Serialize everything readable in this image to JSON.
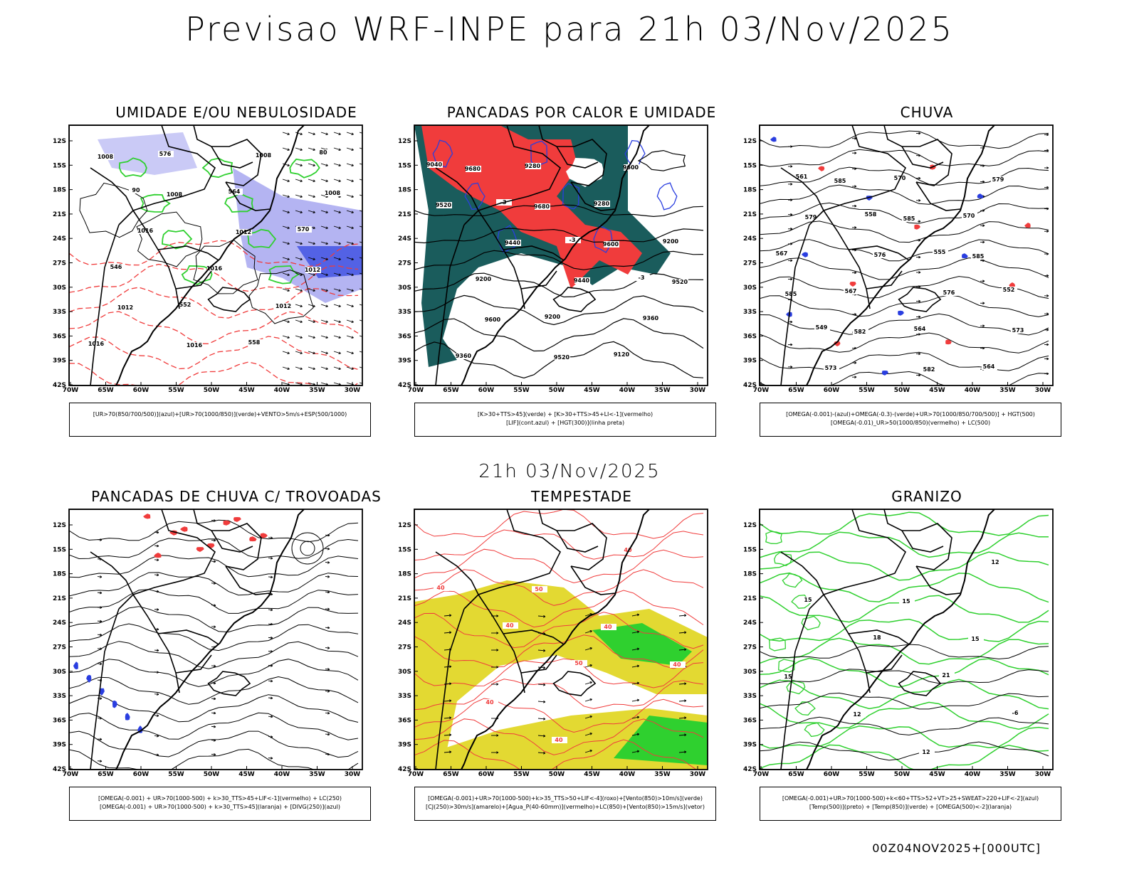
{
  "header": {
    "title": "Previsao WRF-INPE  para 21h 03/Nov/2025",
    "subtitle": "21h 03/Nov/2025"
  },
  "footer": {
    "run_info": "00Z04NOV2025+[000UTC]"
  },
  "axes": {
    "lat_labels": [
      "12S",
      "15S",
      "18S",
      "21S",
      "24S",
      "27S",
      "30S",
      "33S",
      "36S",
      "39S",
      "42S"
    ],
    "lon_labels": [
      "70W",
      "65W",
      "60W",
      "55W",
      "50W",
      "45W",
      "40W",
      "35W",
      "30W"
    ]
  },
  "colors": {
    "red": "#f03c3c",
    "green": "#2fd02f",
    "blue": "#2a3ee0",
    "lilac": "#a7a7f0",
    "teal": "#1a5c5c",
    "yellow": "#e3d932"
  },
  "panels": [
    {
      "id": "umidade",
      "title": "UMIDADE E/OU NEBULOSIDADE",
      "legend": [
        "[UR>70(850/700/500)](azul)+[UR>70(1000/850)](verde)+VENTO>5m/s+ESP(500/1000)"
      ],
      "labels": [
        "1008",
        "1008",
        "1012",
        "1012",
        "1012",
        "1016",
        "1008",
        "1008",
        "1016",
        "1016",
        "1012",
        "1016",
        "576",
        "564",
        "570",
        "546",
        "552",
        "558",
        "80",
        "90"
      ]
    },
    {
      "id": "pancadas-calor",
      "title": "PANCADAS POR CALOR E UMIDADE",
      "legend": [
        "[K>30+TTS>45](verde) + [K>30+TTS>45+LI<-1](vermelho)",
        "[LIF](cont.azul) + [HGT(300)](linha preta)"
      ],
      "labels": [
        "9680",
        "9680",
        "9600",
        "9520",
        "9600",
        "9520",
        "9600",
        "9520",
        "9440",
        "9440",
        "9360",
        "9360",
        "9280",
        "9280",
        "9200",
        "9200",
        "9200",
        "9120",
        "9040",
        "-3",
        "-3",
        "-3"
      ]
    },
    {
      "id": "chuva",
      "title": "CHUVA",
      "legend": [
        "[OMEGA(-0.001)-(azul)+OMEGA(-0.3)-(verde)+UR>70(1000/850/700/500)] + HGT(500)",
        "[OMEGA(-0.01)_UR>50(1000/850)(vermelho) + LC(500)"
      ],
      "labels": [
        "585",
        "585",
        "585",
        "585",
        "582",
        "582",
        "579",
        "579",
        "576",
        "576",
        "573",
        "573",
        "570",
        "570",
        "567",
        "567",
        "564",
        "564",
        "561",
        "558",
        "555",
        "552",
        "549"
      ]
    },
    {
      "id": "trovoadas",
      "title": "PANCADAS DE CHUVA C/ TROVOADAS",
      "legend": [
        "[OMEGA(-0.001) + UR>70(1000-500) + k>30_TTS>45+LIF<-1](vermelho) + LC(250)",
        "[OMEGA(-0.001) + UR>70(1000-500) + k>30_TTS>45](laranja) + [DIVG(250)](azul)"
      ],
      "labels": []
    },
    {
      "id": "tempestade",
      "title": "TEMPESTADE",
      "legend": [
        "[OMEGA(-0.001)+UR>70(1000-500)+k>35_TTS>50+LIF<-4](roxo)+[Vento(850)>10m/s](verde)",
        "[CJ(250)>30m/s](amarelo)+[Agua_P(40-60mm)](vermelho)+LC(850)+[Vento(850)>15m/s](vetor)"
      ],
      "labels": [
        "50",
        "40",
        "40",
        "40",
        "40",
        "40",
        "40",
        "40",
        "50"
      ]
    },
    {
      "id": "granizo",
      "title": "GRANIZO",
      "legend": [
        "[OMEGA(-0.001)+UR>70(1000-500)+k<60+TTS>52+VT>25+SWEAT>220+LIF<-2](azul)",
        "[Temp(500)](preto) + [Temp(850)](verde) + [OMEGA(500)<-2](laranja)"
      ],
      "labels": [
        "15",
        "15",
        "15",
        "12",
        "12",
        "12",
        "15",
        "18",
        "21",
        "-6"
      ]
    }
  ]
}
